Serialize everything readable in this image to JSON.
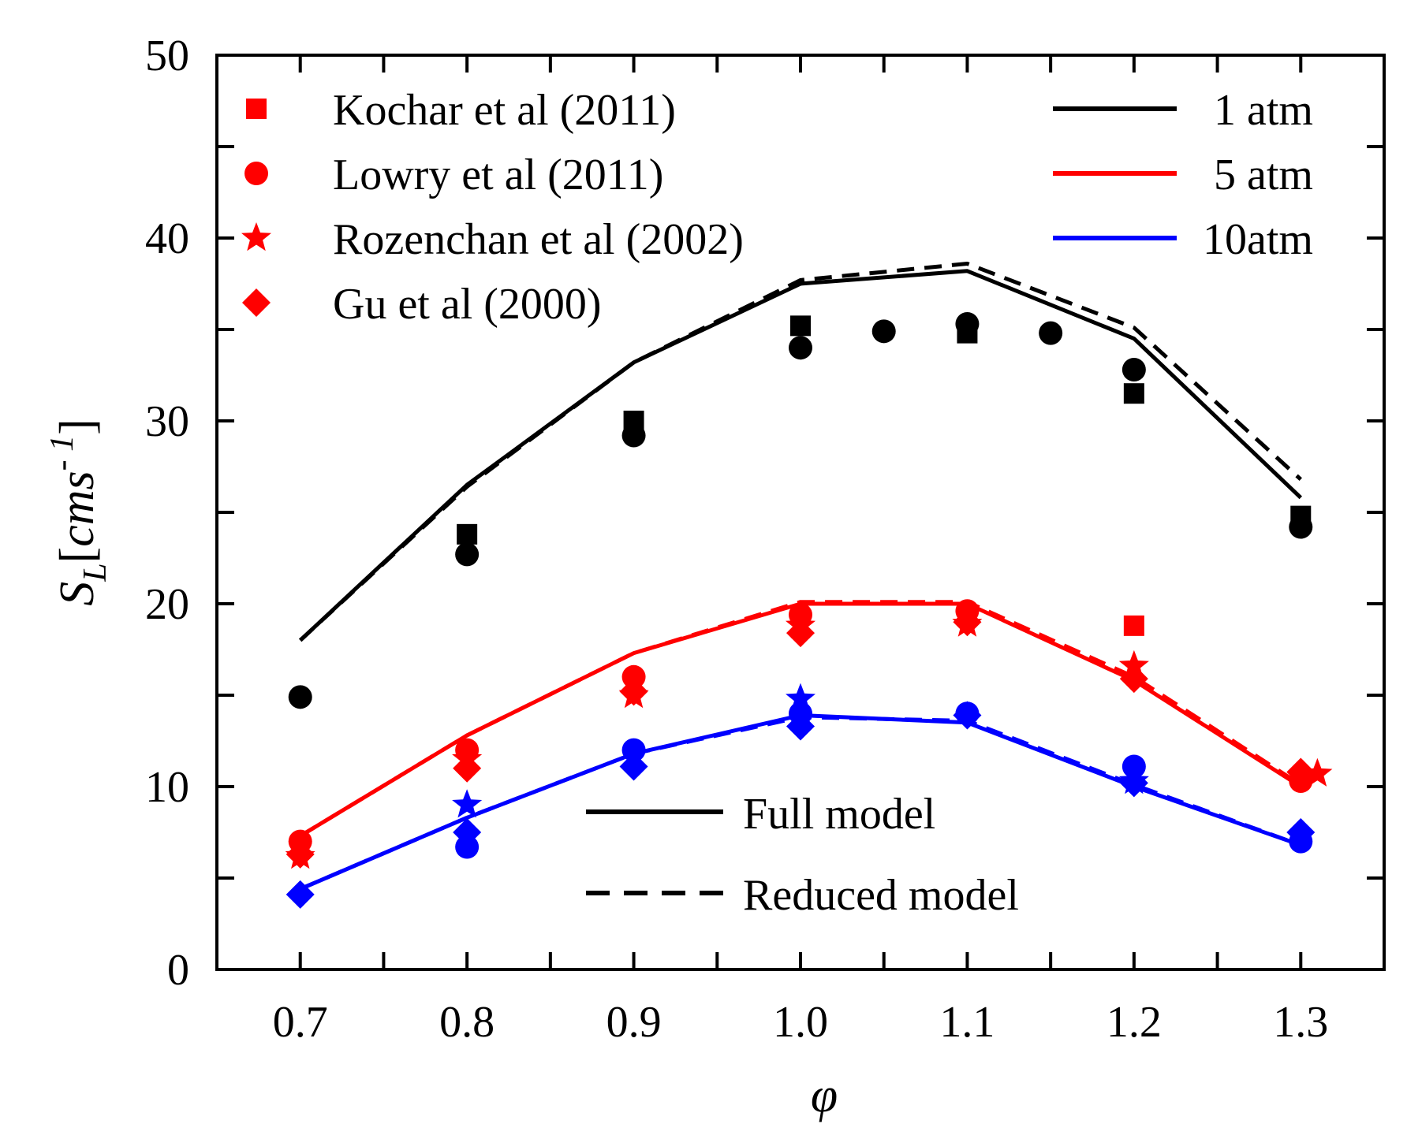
{
  "chart_data": {
    "type": "line",
    "title": "",
    "xlabel": "φ",
    "ylabel": {
      "symbol": "S",
      "subscript": "L",
      "bracket_open": "[",
      "unit": "cms",
      "superscript": "- 1",
      "bracket_close": "]"
    },
    "xlim": [
      0.65,
      1.35
    ],
    "ylim": [
      0,
      50
    ],
    "xticks": [
      0.7,
      0.8,
      0.9,
      1.0,
      1.1,
      1.2,
      1.3
    ],
    "xtick_labels": [
      "0.7",
      "0.8",
      "0.9",
      "1.0",
      "1.1",
      "1.2",
      "1.3"
    ],
    "yticks": [
      0,
      10,
      20,
      30,
      40,
      50
    ],
    "ytick_labels": [
      "0",
      "10",
      "20",
      "30",
      "40",
      "50"
    ],
    "grid": false,
    "colors": {
      "1atm": "#000000",
      "5atm": "#ff0000",
      "10atm": "#0000ff"
    },
    "line_series": [
      {
        "name": "1 atm Full model",
        "pressure": "1atm",
        "style": "solid",
        "x": [
          0.7,
          0.8,
          0.9,
          1.0,
          1.1,
          1.2,
          1.3
        ],
        "y": [
          18.0,
          26.5,
          33.2,
          37.5,
          38.2,
          34.5,
          25.8
        ]
      },
      {
        "name": "1 atm Reduced model",
        "pressure": "1atm",
        "style": "dashed",
        "x": [
          0.7,
          0.8,
          0.9,
          1.0,
          1.1,
          1.2,
          1.3
        ],
        "y": [
          18.0,
          26.4,
          33.2,
          37.7,
          38.6,
          35.1,
          26.8
        ]
      },
      {
        "name": "5 atm Full model",
        "pressure": "5atm",
        "style": "solid",
        "x": [
          0.7,
          0.8,
          0.9,
          1.0,
          1.1,
          1.2,
          1.3
        ],
        "y": [
          7.3,
          12.8,
          17.3,
          20.0,
          20.0,
          15.8,
          10.0
        ]
      },
      {
        "name": "5 atm Reduced model",
        "pressure": "5atm",
        "style": "dashed",
        "x": [
          0.7,
          0.8,
          0.9,
          1.0,
          1.1,
          1.2,
          1.3
        ],
        "y": [
          7.3,
          12.8,
          17.3,
          20.1,
          20.1,
          16.0,
          10.1
        ]
      },
      {
        "name": "10atm Full model",
        "pressure": "10atm",
        "style": "solid",
        "x": [
          0.7,
          0.8,
          0.9,
          1.0,
          1.1,
          1.2,
          1.3
        ],
        "y": [
          4.4,
          8.3,
          11.8,
          13.9,
          13.5,
          10.0,
          6.8
        ]
      },
      {
        "name": "10atm Reduced model",
        "pressure": "10atm",
        "style": "dashed",
        "x": [
          0.7,
          0.8,
          0.9,
          1.0,
          1.1,
          1.2,
          1.3
        ],
        "y": [
          4.4,
          8.3,
          11.8,
          13.8,
          13.6,
          10.1,
          6.8
        ]
      }
    ],
    "scatter_series": [
      {
        "name": "Kochar et al (2011)",
        "marker": "square",
        "points": [
          {
            "pressure": "1atm",
            "x": 0.8,
            "y": 23.8
          },
          {
            "pressure": "1atm",
            "x": 0.9,
            "y": 30.0
          },
          {
            "pressure": "1atm",
            "x": 1.0,
            "y": 35.2
          },
          {
            "pressure": "1atm",
            "x": 1.1,
            "y": 34.8
          },
          {
            "pressure": "1atm",
            "x": 1.2,
            "y": 31.5
          },
          {
            "pressure": "1atm",
            "x": 1.3,
            "y": 24.8
          },
          {
            "pressure": "5atm",
            "x": 1.2,
            "y": 18.8
          }
        ]
      },
      {
        "name": "Lowry et al (2011)",
        "marker": "circle",
        "points": [
          {
            "pressure": "1atm",
            "x": 0.7,
            "y": 14.9
          },
          {
            "pressure": "1atm",
            "x": 0.8,
            "y": 22.7
          },
          {
            "pressure": "1atm",
            "x": 0.9,
            "y": 29.2
          },
          {
            "pressure": "1atm",
            "x": 1.0,
            "y": 34.0
          },
          {
            "pressure": "1atm",
            "x": 1.05,
            "y": 34.9
          },
          {
            "pressure": "1atm",
            "x": 1.1,
            "y": 35.3
          },
          {
            "pressure": "1atm",
            "x": 1.15,
            "y": 34.8
          },
          {
            "pressure": "1atm",
            "x": 1.2,
            "y": 32.8
          },
          {
            "pressure": "1atm",
            "x": 1.3,
            "y": 24.2
          },
          {
            "pressure": "5atm",
            "x": 0.7,
            "y": 7.0
          },
          {
            "pressure": "5atm",
            "x": 0.8,
            "y": 12.0
          },
          {
            "pressure": "5atm",
            "x": 0.9,
            "y": 16.0
          },
          {
            "pressure": "5atm",
            "x": 1.0,
            "y": 19.4
          },
          {
            "pressure": "5atm",
            "x": 1.1,
            "y": 19.6
          },
          {
            "pressure": "5atm",
            "x": 1.3,
            "y": 10.3
          },
          {
            "pressure": "10atm",
            "x": 0.8,
            "y": 6.7
          },
          {
            "pressure": "10atm",
            "x": 0.9,
            "y": 12.0
          },
          {
            "pressure": "10atm",
            "x": 1.0,
            "y": 14.0
          },
          {
            "pressure": "10atm",
            "x": 1.1,
            "y": 14.0
          },
          {
            "pressure": "10atm",
            "x": 1.2,
            "y": 11.1
          },
          {
            "pressure": "10atm",
            "x": 1.3,
            "y": 7.0
          }
        ]
      },
      {
        "name": "Rozenchan et al (2002)",
        "marker": "star",
        "points": [
          {
            "pressure": "5atm",
            "x": 0.7,
            "y": 6.2
          },
          {
            "pressure": "5atm",
            "x": 0.8,
            "y": 11.5
          },
          {
            "pressure": "5atm",
            "x": 0.9,
            "y": 15.0
          },
          {
            "pressure": "5atm",
            "x": 1.0,
            "y": 18.8
          },
          {
            "pressure": "5atm",
            "x": 1.1,
            "y": 18.9
          },
          {
            "pressure": "5atm",
            "x": 1.2,
            "y": 16.6
          },
          {
            "pressure": "5atm",
            "x": 1.31,
            "y": 10.7
          },
          {
            "pressure": "10atm",
            "x": 0.8,
            "y": 9.0
          },
          {
            "pressure": "10atm",
            "x": 1.0,
            "y": 14.8
          },
          {
            "pressure": "10atm",
            "x": 1.2,
            "y": 10.3
          }
        ]
      },
      {
        "name": "Gu et al (2000)",
        "marker": "diamond",
        "points": [
          {
            "pressure": "5atm",
            "x": 0.7,
            "y": 6.3
          },
          {
            "pressure": "5atm",
            "x": 0.8,
            "y": 11.0
          },
          {
            "pressure": "5atm",
            "x": 0.9,
            "y": 15.2
          },
          {
            "pressure": "5atm",
            "x": 1.0,
            "y": 18.4
          },
          {
            "pressure": "5atm",
            "x": 1.1,
            "y": 19.0
          },
          {
            "pressure": "5atm",
            "x": 1.2,
            "y": 15.9
          },
          {
            "pressure": "5atm",
            "x": 1.3,
            "y": 10.8
          },
          {
            "pressure": "10atm",
            "x": 0.7,
            "y": 4.1
          },
          {
            "pressure": "10atm",
            "x": 0.8,
            "y": 7.5
          },
          {
            "pressure": "10atm",
            "x": 0.9,
            "y": 11.1
          },
          {
            "pressure": "10atm",
            "x": 1.0,
            "y": 13.3
          },
          {
            "pressure": "10atm",
            "x": 1.1,
            "y": 13.9
          },
          {
            "pressure": "10atm",
            "x": 1.2,
            "y": 10.2
          },
          {
            "pressure": "10atm",
            "x": 1.3,
            "y": 7.5
          }
        ]
      }
    ],
    "legend_markers": {
      "placement": "top-left",
      "entries": [
        {
          "label": "Kochar et al (2011)",
          "marker": "square",
          "color": "#ff0000"
        },
        {
          "label": "Lowry et al (2011)",
          "marker": "circle",
          "color": "#ff0000"
        },
        {
          "label": "Rozenchan et al (2002)",
          "marker": "star",
          "color": "#ff0000"
        },
        {
          "label": "Gu et al (2000)",
          "marker": "diamond",
          "color": "#ff0000"
        }
      ]
    },
    "legend_pressure": {
      "placement": "top-right",
      "entries": [
        {
          "label": "1 atm",
          "color": "#000000"
        },
        {
          "label": "5 atm",
          "color": "#ff0000"
        },
        {
          "label": "10atm",
          "color": "#0000ff"
        }
      ]
    },
    "legend_model": {
      "placement": "bottom-center",
      "entries": [
        {
          "label": "Full model",
          "style": "solid"
        },
        {
          "label": "Reduced model",
          "style": "dashed"
        }
      ]
    }
  }
}
